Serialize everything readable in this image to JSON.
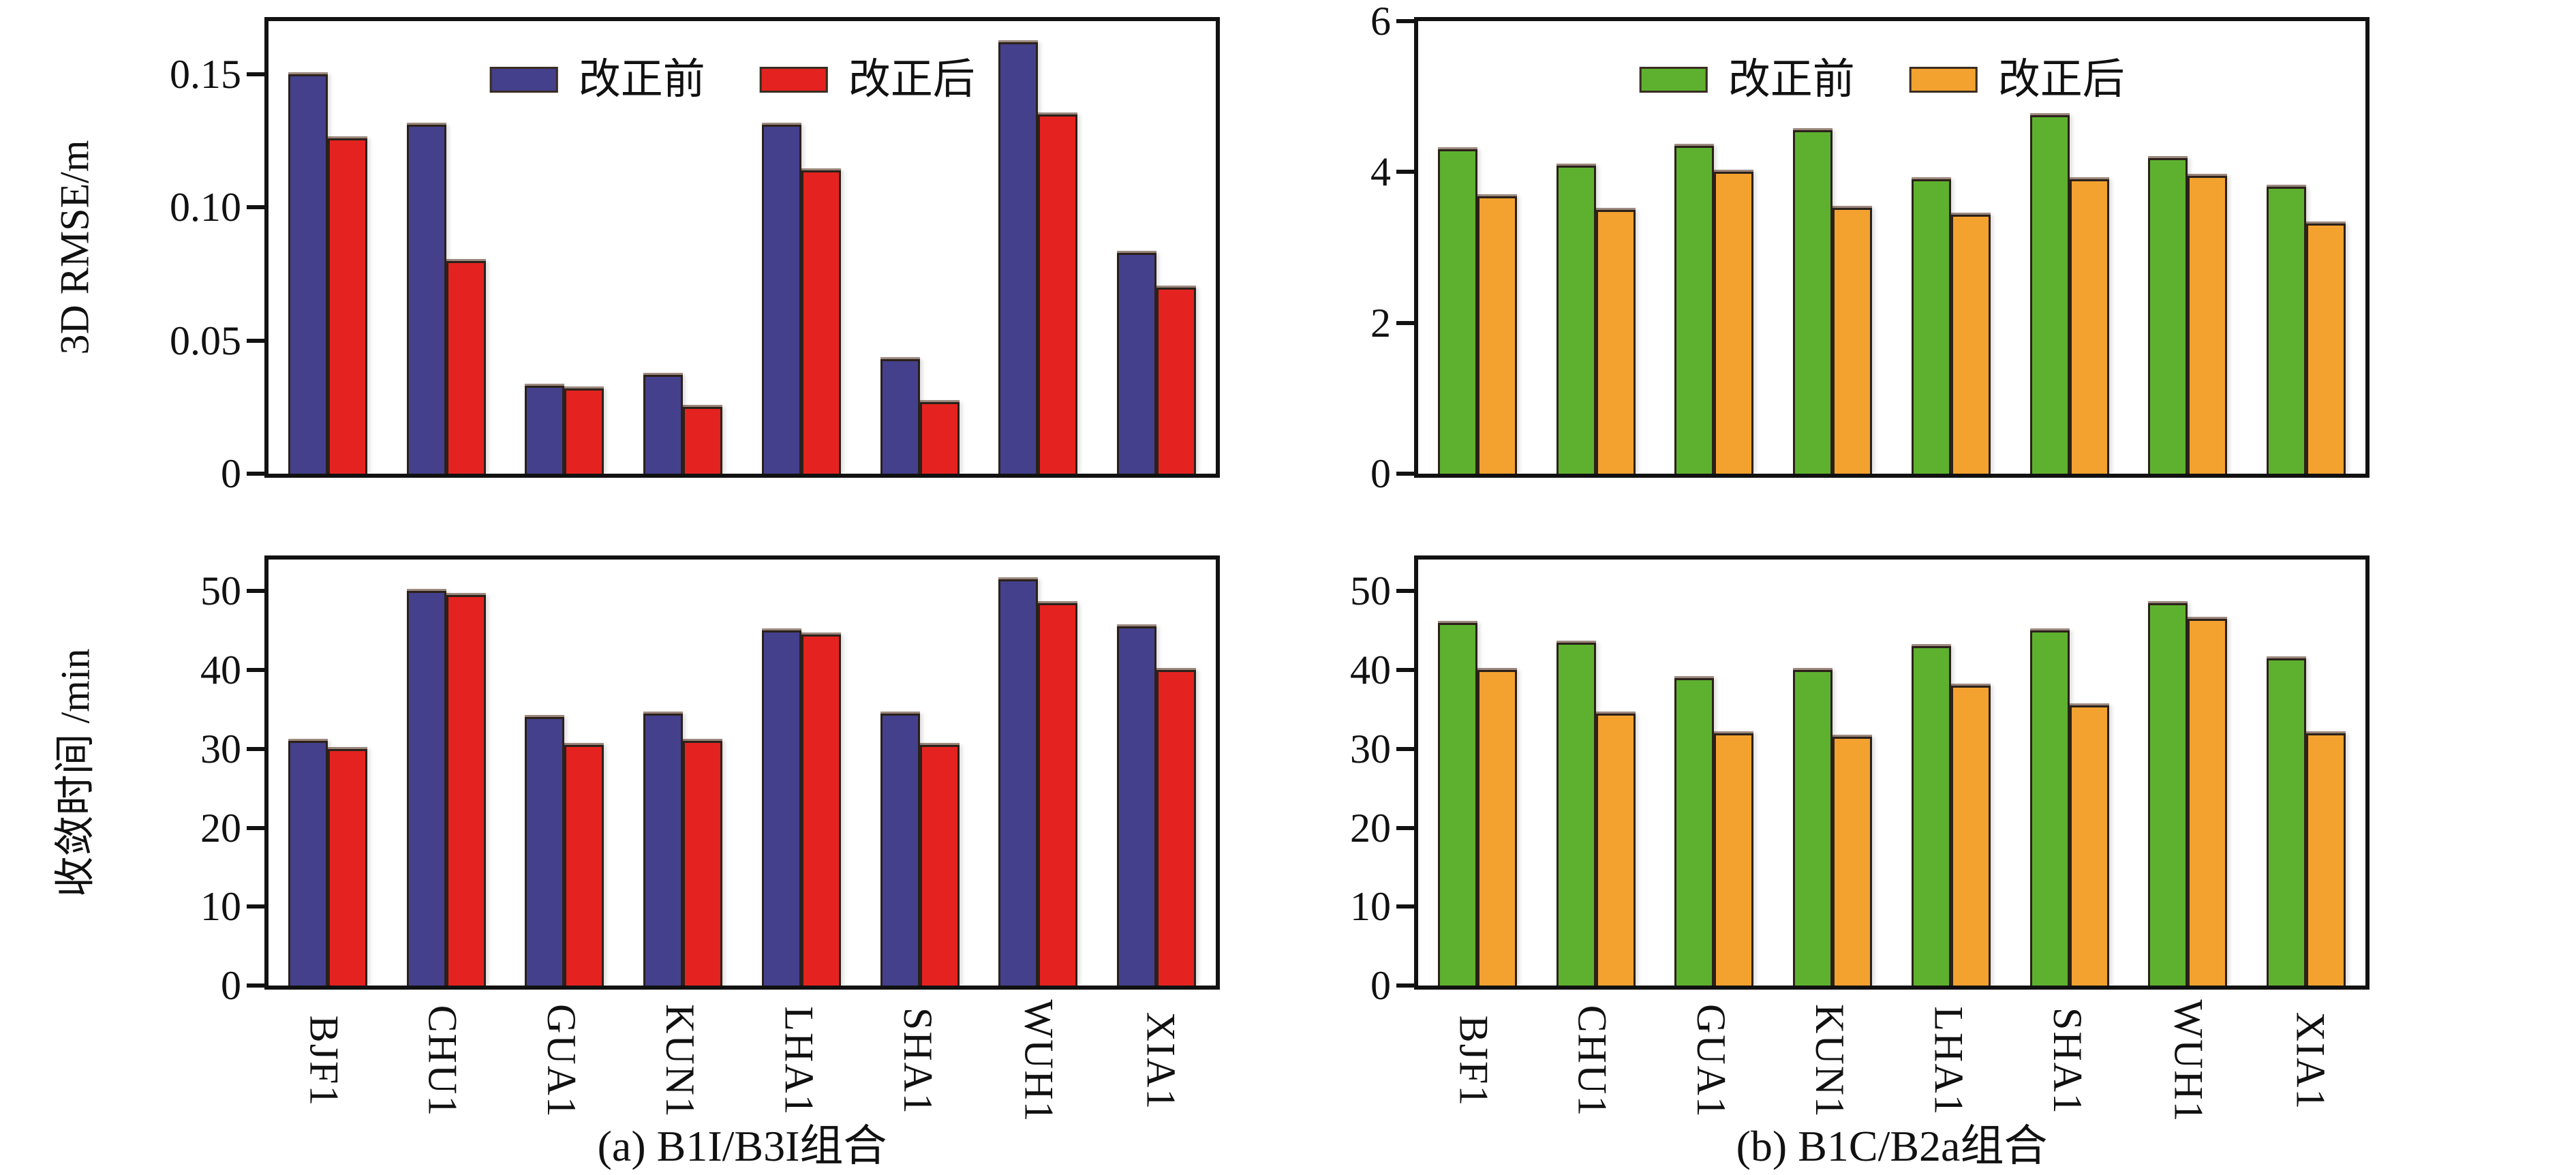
{
  "figure": {
    "legend": {
      "before": "改正前",
      "after": "改正后"
    },
    "captions": {
      "a": "(a) B1I/B3I组合",
      "b": "(b) B1C/B2a组合"
    }
  },
  "colors": {
    "blue": "#44408c",
    "red": "#e42320",
    "green": "#5eb12f",
    "orange": "#f3a22f",
    "axis": "#121212"
  },
  "categories": [
    "BJF1",
    "CHU1",
    "GUA1",
    "KUN1",
    "LHA1",
    "SHA1",
    "WUH1",
    "XIA1"
  ],
  "chart_data": [
    {
      "id": "a_rmse",
      "type": "bar",
      "title": "(a) B1I/B3I组合 — 3D RMSE",
      "ylabel": "3D RMSE/m",
      "ylim": [
        0,
        0.17
      ],
      "yticks": [
        0,
        0.05,
        0.1,
        0.15
      ],
      "ytick_labels": [
        "0",
        "0.05",
        "0.10",
        "0.15"
      ],
      "grid": false,
      "legend": true,
      "legend_position": "top-center-inside",
      "categories": [
        "BJF1",
        "CHU1",
        "GUA1",
        "KUN1",
        "LHA1",
        "SHA1",
        "WUH1",
        "XIA1"
      ],
      "series": [
        {
          "name": "改正前",
          "color": "#44408c",
          "values": [
            0.15,
            0.131,
            0.033,
            0.037,
            0.131,
            0.043,
            0.162,
            0.083
          ]
        },
        {
          "name": "改正后",
          "color": "#e42320",
          "values": [
            0.126,
            0.08,
            0.032,
            0.025,
            0.114,
            0.027,
            0.135,
            0.07
          ]
        }
      ]
    },
    {
      "id": "b_rmse",
      "type": "bar",
      "title": "(b) B1C/B2a组合 — 3D RMSE",
      "ylabel": "",
      "ylim": [
        0,
        6
      ],
      "yticks": [
        0,
        2,
        4,
        6
      ],
      "ytick_labels": [
        "0",
        "2",
        "4",
        "6"
      ],
      "grid": false,
      "legend": true,
      "legend_position": "top-center-inside",
      "categories": [
        "BJF1",
        "CHU1",
        "GUA1",
        "KUN1",
        "LHA1",
        "SHA1",
        "WUH1",
        "XIA1"
      ],
      "series": [
        {
          "name": "改正前",
          "color": "#5eb12f",
          "values": [
            4.3,
            4.08,
            4.35,
            4.55,
            3.9,
            4.75,
            4.18,
            3.8
          ]
        },
        {
          "name": "改正后",
          "color": "#f3a22f",
          "values": [
            3.68,
            3.5,
            4.0,
            3.52,
            3.43,
            3.9,
            3.95,
            3.32
          ]
        }
      ]
    },
    {
      "id": "a_conv",
      "type": "bar",
      "title": "(a) B1I/B3I组合 — 收敛时间",
      "ylabel": "收敛时间 /min",
      "ylim": [
        0,
        54
      ],
      "yticks": [
        0,
        10,
        20,
        30,
        40,
        50
      ],
      "ytick_labels": [
        "0",
        "10",
        "20",
        "30",
        "40",
        "50"
      ],
      "grid": false,
      "legend": false,
      "categories": [
        "BJF1",
        "CHU1",
        "GUA1",
        "KUN1",
        "LHA1",
        "SHA1",
        "WUH1",
        "XIA1"
      ],
      "series": [
        {
          "name": "改正前",
          "color": "#44408c",
          "values": [
            31.0,
            50.0,
            34.0,
            34.5,
            45.0,
            34.5,
            51.5,
            45.5
          ]
        },
        {
          "name": "改正后",
          "color": "#e42320",
          "values": [
            30.0,
            49.5,
            30.5,
            31.0,
            44.5,
            30.5,
            48.5,
            40.0
          ]
        }
      ]
    },
    {
      "id": "b_conv",
      "type": "bar",
      "title": "(b) B1C/B2a组合 — 收敛时间",
      "ylabel": "",
      "ylim": [
        0,
        54
      ],
      "yticks": [
        0,
        10,
        20,
        30,
        40,
        50
      ],
      "ytick_labels": [
        "0",
        "10",
        "20",
        "30",
        "40",
        "50"
      ],
      "grid": false,
      "legend": false,
      "categories": [
        "BJF1",
        "CHU1",
        "GUA1",
        "KUN1",
        "LHA1",
        "SHA1",
        "WUH1",
        "XIA1"
      ],
      "series": [
        {
          "name": "改正前",
          "color": "#5eb12f",
          "values": [
            46.0,
            43.5,
            39.0,
            40.0,
            43.0,
            45.0,
            48.5,
            41.5
          ]
        },
        {
          "name": "改正后",
          "color": "#f3a22f",
          "values": [
            40.0,
            34.5,
            32.0,
            31.5,
            38.0,
            35.5,
            46.5,
            32.0
          ]
        }
      ]
    }
  ]
}
